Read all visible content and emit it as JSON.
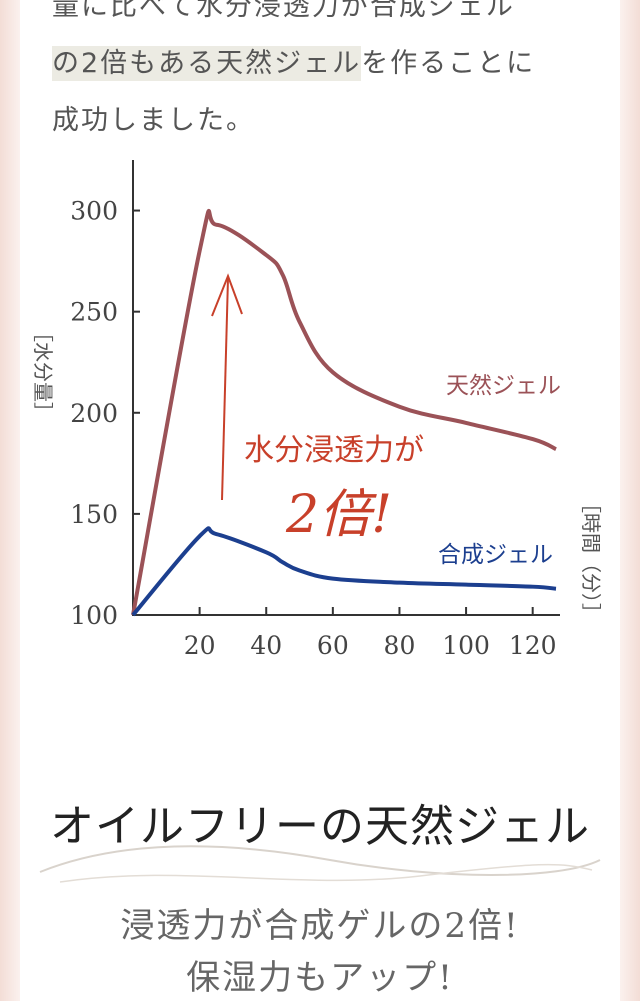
{
  "intro": {
    "line1": "量に比べて水分浸透力が合成ジェル",
    "line2_highlight": "の2倍もある天然ジェル",
    "line2_rest": "を作ることに",
    "line3": "成功しました。"
  },
  "chart_data": {
    "type": "line",
    "x": [
      0,
      20,
      25,
      40,
      45,
      50,
      60,
      80,
      100,
      120,
      127
    ],
    "series": [
      {
        "name": "天然ジェル",
        "color": "#9b5257",
        "values": [
          100,
          280,
          293,
          278,
          268,
          245,
          220,
          203,
          195,
          187,
          182
        ]
      },
      {
        "name": "合成ジェル",
        "color": "#1c3f8f",
        "values": [
          100,
          139,
          140,
          131,
          126,
          122,
          118,
          116,
          115,
          114,
          113
        ]
      }
    ],
    "xticks": [
      "20",
      "40",
      "60",
      "80",
      "100",
      "120"
    ],
    "yticks": [
      "100",
      "150",
      "200",
      "250",
      "300"
    ],
    "xlim": [
      0,
      127
    ],
    "ylim": [
      100,
      325
    ],
    "ylabel": "［水分量］",
    "xlabel": "［時間（分）］",
    "annotation_line1": "水分浸透力が",
    "annotation_line2": "2倍!",
    "annotation_color": "#c8402a"
  },
  "headline": "オイルフリーの天然ジェル",
  "sub": {
    "line1": "浸透力が合成ゲルの2倍!",
    "line2": "保湿力もアップ!"
  }
}
